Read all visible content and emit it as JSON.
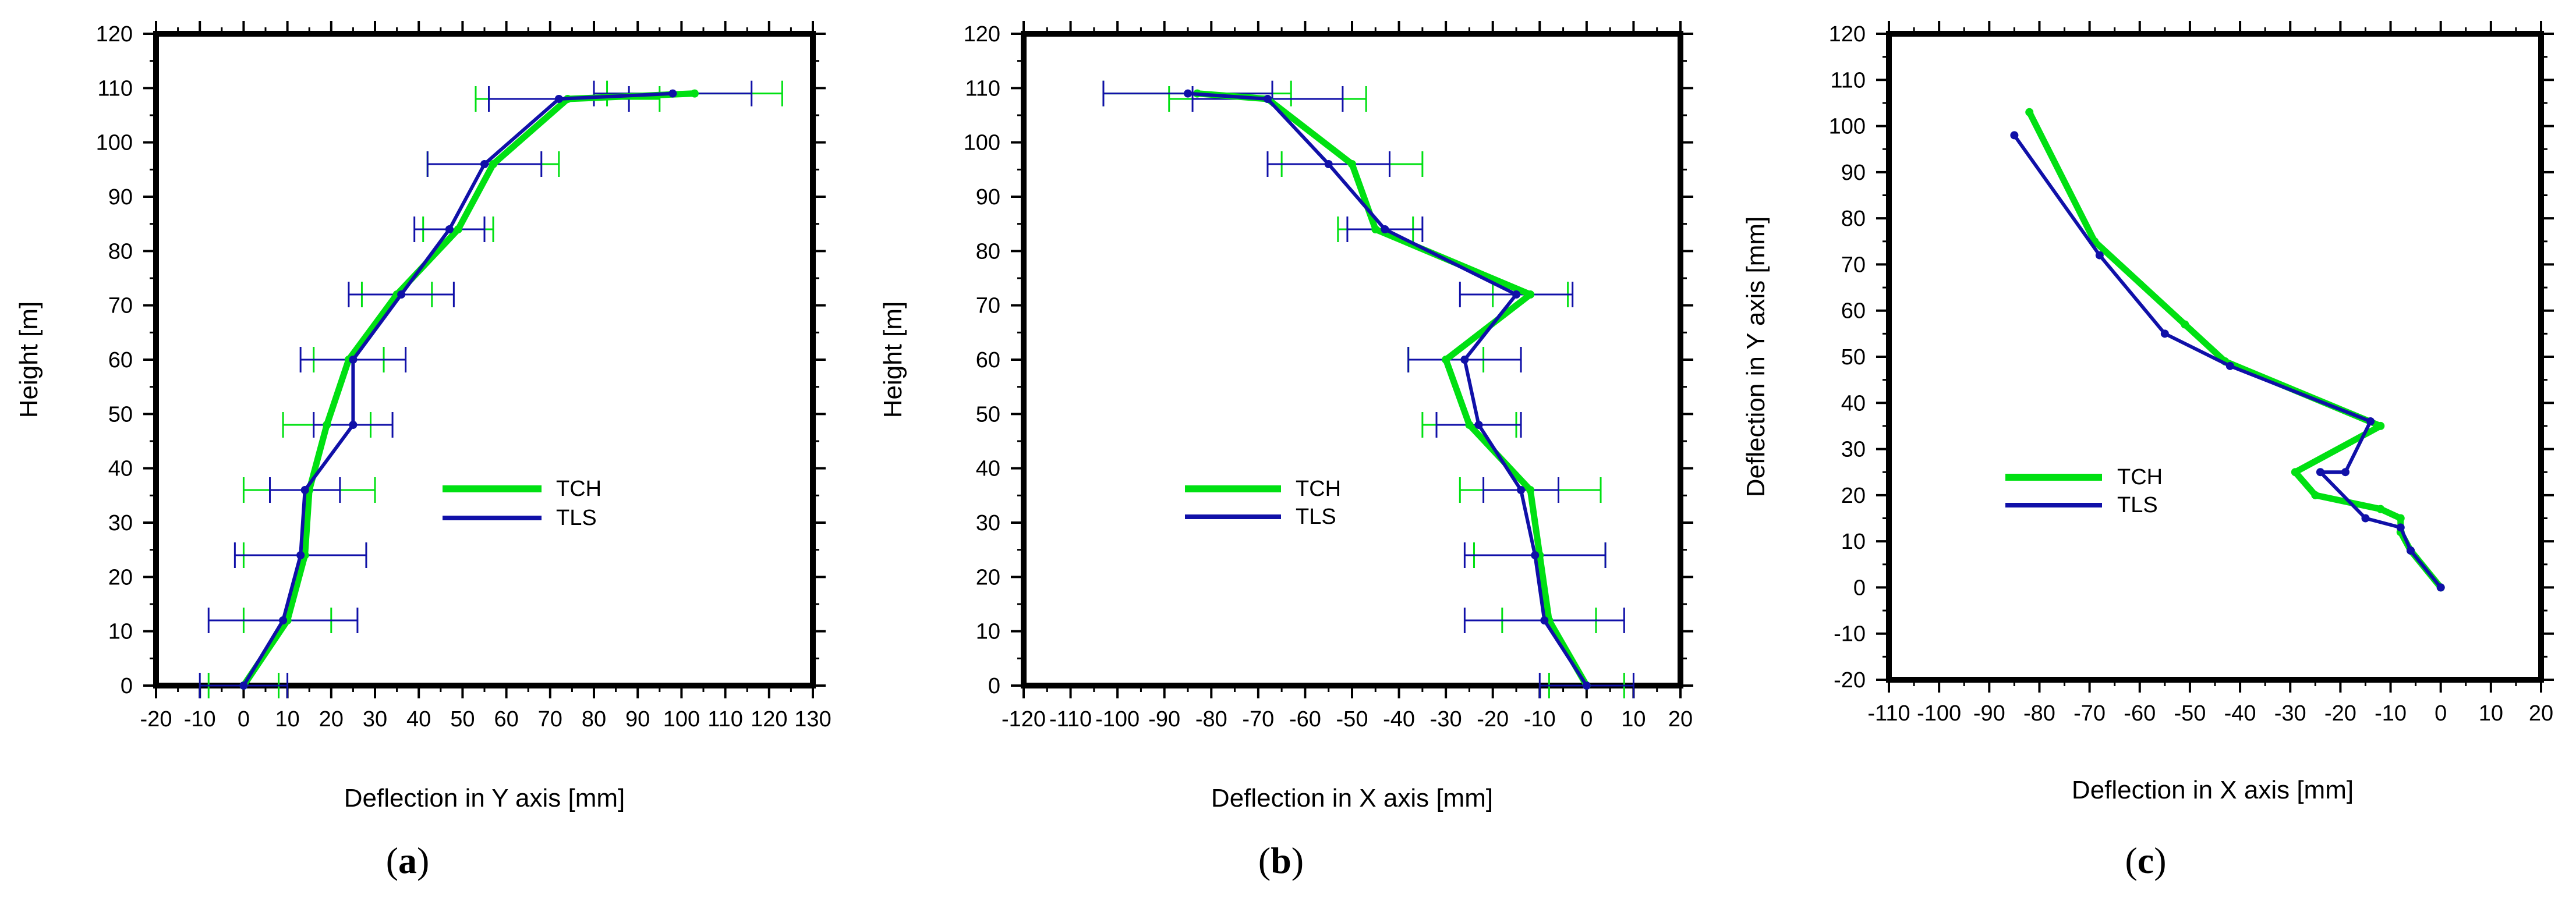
{
  "colors": {
    "TCH": "#00e012",
    "TLS": "#1010a8",
    "frame": "#000000"
  },
  "chart_data": [
    {
      "id": "a",
      "type": "line",
      "panel_label": "a",
      "xlabel": "Deflection in Y axis [mm]",
      "ylabel": "Height [m]",
      "xlim": [
        -20,
        130
      ],
      "ylim": [
        0,
        120
      ],
      "xticks": [
        -20,
        -10,
        0,
        10,
        20,
        30,
        40,
        50,
        60,
        70,
        80,
        90,
        100,
        110,
        120,
        130
      ],
      "yticks": [
        0,
        10,
        20,
        30,
        40,
        50,
        60,
        70,
        80,
        90,
        100,
        110,
        120
      ],
      "legend": {
        "position": "center-right",
        "entries": [
          "TCH",
          "TLS"
        ]
      },
      "series": [
        {
          "name": "TCH",
          "points": [
            [
              0,
              0
            ],
            [
              10,
              12
            ],
            [
              14,
              24
            ],
            [
              15,
              36
            ],
            [
              19,
              48
            ],
            [
              24,
              60
            ],
            [
              35,
              72
            ],
            [
              49,
              84
            ],
            [
              57,
              96
            ],
            [
              74,
              108
            ],
            [
              103,
              109
            ]
          ],
          "error": [
            [
              0,
              8
            ],
            [
              0,
              10
            ],
            [
              0,
              14
            ],
            [
              0,
              15
            ],
            [
              0,
              10
            ],
            [
              0,
              8
            ],
            [
              0,
              8
            ],
            [
              0,
              8
            ],
            [
              0,
              15
            ],
            [
              0,
              21
            ],
            [
              0,
              20
            ]
          ]
        },
        {
          "name": "TLS",
          "points": [
            [
              0,
              0
            ],
            [
              9,
              12
            ],
            [
              13,
              24
            ],
            [
              14,
              36
            ],
            [
              25,
              48
            ],
            [
              25,
              60
            ],
            [
              36,
              72
            ],
            [
              47,
              84
            ],
            [
              55,
              96
            ],
            [
              72,
              108
            ],
            [
              98,
              109
            ]
          ],
          "error": [
            [
              0,
              10
            ],
            [
              0,
              17
            ],
            [
              0,
              15
            ],
            [
              0,
              8
            ],
            [
              0,
              9
            ],
            [
              0,
              12
            ],
            [
              0,
              12
            ],
            [
              0,
              8
            ],
            [
              0,
              13
            ],
            [
              0,
              16
            ],
            [
              0,
              18
            ]
          ]
        }
      ]
    },
    {
      "id": "b",
      "type": "line",
      "panel_label": "b",
      "xlabel": "Deflection in X axis [mm]",
      "ylabel": "Height [m]",
      "xlim": [
        -120,
        20
      ],
      "ylim": [
        0,
        120
      ],
      "xticks": [
        -120,
        -110,
        -100,
        -90,
        -80,
        -70,
        -60,
        -50,
        -40,
        -30,
        -20,
        -10,
        0,
        10,
        20
      ],
      "yticks": [
        0,
        10,
        20,
        30,
        40,
        50,
        60,
        70,
        80,
        90,
        100,
        110,
        120
      ],
      "legend": {
        "position": "center-left",
        "entries": [
          "TCH",
          "TLS"
        ]
      },
      "series": [
        {
          "name": "TCH",
          "points": [
            [
              0,
              0
            ],
            [
              -8,
              12
            ],
            [
              -10,
              24
            ],
            [
              -12,
              36
            ],
            [
              -25,
              48
            ],
            [
              -30,
              60
            ],
            [
              -12,
              72
            ],
            [
              -45,
              84
            ],
            [
              -50,
              96
            ],
            [
              -68,
              108
            ],
            [
              -83,
              109
            ]
          ],
          "error": [
            [
              0,
              8
            ],
            [
              0,
              10
            ],
            [
              0,
              14
            ],
            [
              0,
              15
            ],
            [
              0,
              10
            ],
            [
              0,
              8
            ],
            [
              0,
              8
            ],
            [
              0,
              8
            ],
            [
              0,
              15
            ],
            [
              0,
              21
            ],
            [
              0,
              20
            ]
          ]
        },
        {
          "name": "TLS",
          "points": [
            [
              0,
              0
            ],
            [
              -9,
              12
            ],
            [
              -11,
              24
            ],
            [
              -14,
              36
            ],
            [
              -23,
              48
            ],
            [
              -26,
              60
            ],
            [
              -15,
              72
            ],
            [
              -43,
              84
            ],
            [
              -55,
              96
            ],
            [
              -68,
              108
            ],
            [
              -85,
              109
            ]
          ],
          "error": [
            [
              0,
              10
            ],
            [
              0,
              17
            ],
            [
              0,
              15
            ],
            [
              0,
              8
            ],
            [
              0,
              9
            ],
            [
              0,
              12
            ],
            [
              0,
              12
            ],
            [
              0,
              8
            ],
            [
              0,
              13
            ],
            [
              0,
              16
            ],
            [
              0,
              18
            ]
          ]
        }
      ]
    },
    {
      "id": "c",
      "type": "line",
      "panel_label": "c",
      "xlabel": "Deflection in X axis [mm]",
      "ylabel": "Deflection in Y axis [mm]",
      "xlim": [
        -110,
        20
      ],
      "ylim": [
        -20,
        120
      ],
      "xticks": [
        -110,
        -100,
        -90,
        -80,
        -70,
        -60,
        -50,
        -40,
        -30,
        -20,
        -10,
        0,
        10,
        20
      ],
      "yticks": [
        -20,
        -10,
        0,
        10,
        20,
        30,
        40,
        50,
        60,
        70,
        80,
        90,
        100,
        110,
        120
      ],
      "legend": {
        "position": "center-left",
        "entries": [
          "TCH",
          "TLS"
        ]
      },
      "series": [
        {
          "name": "TCH",
          "points": [
            [
              0,
              0
            ],
            [
              -6,
              8
            ],
            [
              -8,
              12
            ],
            [
              -8,
              15
            ],
            [
              -12,
              17
            ],
            [
              -25,
              20
            ],
            [
              -29,
              25
            ],
            [
              -12,
              35
            ],
            [
              -43,
              49
            ],
            [
              -51,
              57
            ],
            [
              -69,
              75
            ],
            [
              -82,
              103
            ]
          ]
        },
        {
          "name": "TLS",
          "points": [
            [
              0,
              0
            ],
            [
              -6,
              8
            ],
            [
              -8,
              13
            ],
            [
              -15,
              15
            ],
            [
              -24,
              25
            ],
            [
              -19,
              25
            ],
            [
              -14,
              36
            ],
            [
              -42,
              48
            ],
            [
              -55,
              55
            ],
            [
              -68,
              72
            ],
            [
              -85,
              98
            ]
          ]
        }
      ]
    }
  ]
}
